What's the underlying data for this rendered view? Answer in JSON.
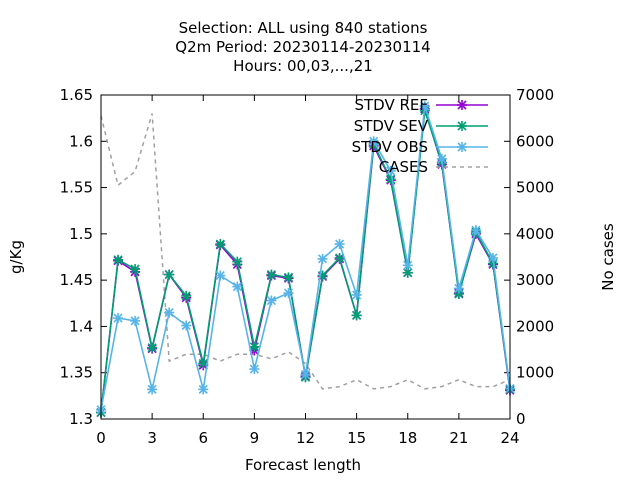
{
  "chart_data": {
    "type": "line",
    "title_lines": [
      "Selection: ALL using   840 stations",
      "Q2m   Period: 20230114-20230114",
      "Hours:  00,03,...,21"
    ],
    "xlabel": "Forecast length",
    "ylabel": "g/Kg",
    "y2label": "No cases",
    "xlim": [
      0,
      24
    ],
    "ylim": [
      1.3,
      1.65
    ],
    "y2lim": [
      0,
      7000
    ],
    "x_ticks": [
      0,
      3,
      6,
      9,
      12,
      15,
      18,
      21,
      24
    ],
    "y_tick_labels": [
      "1.3",
      "1.35",
      "1.4",
      "1.45",
      "1.5",
      "1.55",
      "1.6",
      "1.65"
    ],
    "y2_ticks": [
      0,
      1000,
      2000,
      3000,
      4000,
      5000,
      6000,
      7000
    ],
    "x": [
      0,
      1,
      2,
      3,
      4,
      5,
      6,
      7,
      8,
      9,
      10,
      11,
      12,
      13,
      14,
      15,
      16,
      17,
      18,
      19,
      20,
      21,
      22,
      23,
      24
    ],
    "series": [
      {
        "name": "STDV REF",
        "color": "#9400d3",
        "axis": "y",
        "values": [
          1.307,
          1.471,
          1.459,
          1.376,
          1.456,
          1.431,
          1.358,
          1.488,
          1.467,
          1.374,
          1.455,
          1.452,
          1.346,
          1.454,
          1.473,
          1.412,
          1.595,
          1.558,
          1.458,
          1.635,
          1.575,
          1.436,
          1.5,
          1.467,
          1.331
        ]
      },
      {
        "name": "STDV SEV",
        "color": "#009e73",
        "axis": "y",
        "values": [
          1.307,
          1.472,
          1.462,
          1.377,
          1.456,
          1.433,
          1.36,
          1.489,
          1.47,
          1.378,
          1.456,
          1.453,
          1.345,
          1.455,
          1.474,
          1.412,
          1.597,
          1.559,
          1.458,
          1.633,
          1.577,
          1.435,
          1.502,
          1.468,
          1.332
        ]
      },
      {
        "name": "STDV OBS",
        "color": "#56b4e9",
        "axis": "y",
        "values": [
          1.31,
          1.409,
          1.406,
          1.332,
          1.415,
          1.401,
          1.332,
          1.455,
          1.443,
          1.354,
          1.428,
          1.436,
          1.348,
          1.473,
          1.489,
          1.434,
          1.6,
          1.568,
          1.466,
          1.638,
          1.581,
          1.441,
          1.504,
          1.474,
          1.333
        ]
      },
      {
        "name": "CASES",
        "color": "#a0a0a0",
        "axis": "y2",
        "dashed": true,
        "values": [
          6550,
          5050,
          5350,
          6600,
          1250,
          1400,
          1400,
          1250,
          1400,
          1400,
          1300,
          1450,
          1200,
          650,
          700,
          850,
          650,
          700,
          850,
          650,
          700,
          850,
          700,
          700,
          850
        ]
      }
    ],
    "legend_position": "top-right"
  }
}
